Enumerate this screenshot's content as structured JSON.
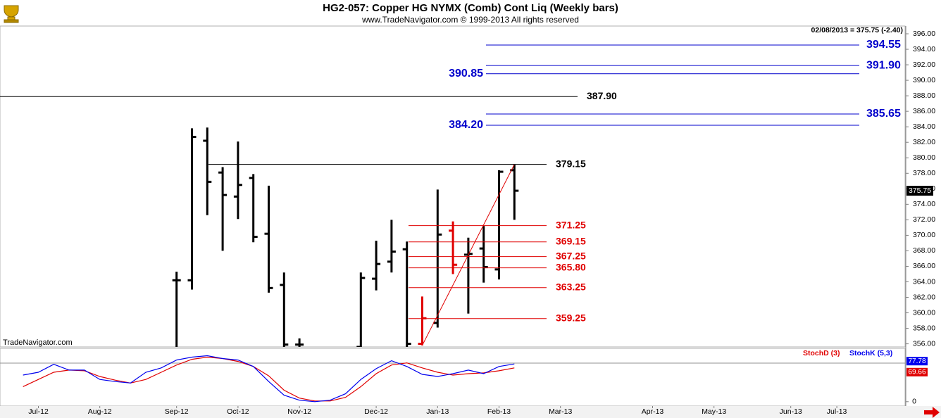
{
  "chart_data": [
    {
      "type": "ohlc",
      "title": "HG2-057:  Copper HG NYMX (Comb) Cont Liq  (Weekly bars)",
      "subtitle": "www.TradeNavigator.com © 1999-2013 All rights reserved",
      "info": "02/08/2013 = 375.75 (-2.40)",
      "watermark": "TradeNavigator.com",
      "categories": [
        null,
        null,
        "Jul-12",
        null,
        null,
        null,
        "Aug-12",
        null,
        null,
        null,
        null,
        "Sep-12",
        null,
        null,
        null,
        "Oct-12",
        null,
        null,
        null,
        "Nov-12",
        null,
        null,
        null,
        null,
        "Dec-12",
        null,
        null,
        null,
        "Jan-13",
        null,
        null,
        null,
        "Feb-13",
        null,
        null,
        null,
        "Mar-13",
        null,
        null,
        null,
        null,
        null,
        "Apr-13",
        null,
        null,
        null,
        "May-13",
        null,
        null,
        null,
        null,
        "Jun-13",
        null,
        null,
        "Jul-13",
        null,
        null,
        null,
        null
      ],
      "open": [
        null,
        null,
        null,
        null,
        null,
        null,
        null,
        null,
        null,
        null,
        null,
        364.2,
        364.2,
        382.2,
        378.1,
        375.0,
        377.4,
        370.2,
        363.6,
        355.9,
        null,
        null,
        null,
        355.6,
        364.4,
        366.6,
        368.2,
        356.0,
        358.7,
        370.6,
        367.5,
        368.3,
        365.6,
        378.4,
        null,
        null,
        null,
        null,
        null,
        null,
        null,
        null,
        null,
        null,
        null,
        null,
        null,
        null,
        null,
        null,
        null,
        null,
        null,
        null,
        null,
        null,
        null,
        null,
        null
      ],
      "high": [
        null,
        null,
        null,
        null,
        null,
        null,
        null,
        null,
        null,
        null,
        null,
        365.3,
        383.8,
        383.9,
        378.8,
        382.1,
        377.9,
        376.4,
        365.2,
        356.7,
        null,
        null,
        null,
        365.2,
        369.3,
        372.0,
        369.2,
        362.1,
        375.9,
        371.8,
        369.7,
        371.2,
        378.4,
        379.15,
        null,
        null,
        null,
        null,
        null,
        null,
        null,
        null,
        null,
        null,
        null,
        null,
        null,
        null,
        null,
        null,
        null,
        null,
        null,
        null,
        null,
        null,
        null,
        null,
        null
      ],
      "low": [
        null,
        null,
        null,
        null,
        null,
        null,
        null,
        null,
        null,
        null,
        null,
        355.6,
        363.0,
        372.6,
        368.0,
        372.1,
        369.1,
        362.6,
        355.6,
        355.6,
        null,
        null,
        null,
        355.6,
        362.9,
        365.2,
        355.6,
        355.8,
        358.1,
        365.0,
        359.9,
        363.9,
        364.3,
        372.0,
        null,
        null,
        null,
        null,
        null,
        null,
        null,
        null,
        null,
        null,
        null,
        null,
        null,
        null,
        null,
        null,
        null,
        null,
        null,
        null,
        null,
        null,
        null,
        null,
        null
      ],
      "close": [
        null,
        null,
        null,
        null,
        null,
        null,
        null,
        null,
        null,
        null,
        null,
        364.2,
        382.7,
        376.9,
        375.2,
        376.5,
        369.8,
        363.2,
        355.9,
        355.9,
        null,
        null,
        null,
        364.5,
        366.3,
        367.9,
        356.0,
        359.3,
        370.1,
        366.2,
        367.6,
        365.9,
        378.2,
        375.75,
        null,
        null,
        null,
        null,
        null,
        null,
        null,
        null,
        null,
        null,
        null,
        null,
        null,
        null,
        null,
        null,
        null,
        null,
        null,
        null,
        null,
        null,
        null,
        null,
        null
      ],
      "bar_colors": [
        null,
        null,
        null,
        null,
        null,
        null,
        null,
        null,
        null,
        null,
        null,
        "#000000",
        "#000000",
        "#000000",
        "#000000",
        "#000000",
        "#000000",
        "#000000",
        "#000000",
        "#000000",
        null,
        null,
        null,
        "#000000",
        "#000000",
        "#000000",
        "#000000",
        "#e00000",
        "#000000",
        "#e00000",
        "#000000",
        "#000000",
        "#000000",
        "#000000",
        null,
        null,
        null,
        null,
        null,
        null,
        null,
        null,
        null,
        null,
        null,
        null,
        null,
        null,
        null,
        null,
        null,
        null,
        null,
        null,
        null,
        null,
        null,
        null,
        null
      ],
      "ylim": [
        355.6,
        397
      ],
      "yticks": [
        {
          "value": 356,
          "label": "356.00"
        },
        {
          "value": 358,
          "label": "358.00"
        },
        {
          "value": 360,
          "label": "360.00"
        },
        {
          "value": 362,
          "label": "362.00"
        },
        {
          "value": 364,
          "label": "364.00"
        },
        {
          "value": 366,
          "label": "366.00"
        },
        {
          "value": 368,
          "label": "368.00"
        },
        {
          "value": 370,
          "label": "370.00"
        },
        {
          "value": 372,
          "label": "372.00"
        },
        {
          "value": 374,
          "label": "374.00"
        },
        {
          "value": 376,
          "label": "376.00"
        },
        {
          "value": 378,
          "label": "378.00"
        },
        {
          "value": 380,
          "label": "380.00"
        },
        {
          "value": 382,
          "label": "382.00"
        },
        {
          "value": 384,
          "label": "384.00"
        },
        {
          "value": 386,
          "label": "386.00"
        },
        {
          "value": 388,
          "label": "388.00"
        },
        {
          "value": 390,
          "label": "390.00"
        },
        {
          "value": 392,
          "label": "392.00"
        },
        {
          "value": 394,
          "label": "394.00"
        },
        {
          "value": 396,
          "label": "396.00"
        }
      ],
      "levels": [
        {
          "value": 394.55,
          "label": "394.55",
          "color": "#0000cc"
        },
        {
          "value": 391.9,
          "label": "391.90",
          "color": "#0000cc"
        },
        {
          "value": 390.85,
          "label": "390.85",
          "color": "#0000cc"
        },
        {
          "value": 387.9,
          "label": "387.90",
          "color": "#000000"
        },
        {
          "value": 385.65,
          "label": "385.65",
          "color": "#0000cc"
        },
        {
          "value": 384.2,
          "label": "384.20",
          "color": "#0000cc"
        },
        {
          "value": 379.15,
          "label": "379.15",
          "color": "#000000"
        },
        {
          "value": 371.25,
          "label": "371.25",
          "color": "#e00000"
        },
        {
          "value": 369.15,
          "label": "369.15",
          "color": "#e00000"
        },
        {
          "value": 367.25,
          "label": "367.25",
          "color": "#e00000"
        },
        {
          "value": 365.8,
          "label": "365.80",
          "color": "#e00000"
        },
        {
          "value": 363.25,
          "label": "363.25",
          "color": "#e00000"
        },
        {
          "value": 359.25,
          "label": "359.25",
          "color": "#e00000"
        }
      ],
      "trend_color": "#e00000"
    },
    {
      "type": "line",
      "series": [
        {
          "name": "StochD (3)",
          "color": "#e00000",
          "values": [
            null,
            31.1,
            45.9,
            60.7,
            65.2,
            63.7,
            51.9,
            44.4,
            38.5,
            45.9,
            60.7,
            75.6,
            87.4,
            91.9,
            88.9,
            83.0,
            72.6,
            53.3,
            23.7,
            7.4,
            1.5,
            1.5,
            8.9,
            31.1,
            57.8,
            75.6,
            80.0,
            69.6,
            60.7,
            54.8,
            57.8,
            59.3,
            63.7,
            69.66,
            null,
            null,
            null,
            null,
            null,
            null,
            null,
            null,
            null,
            null,
            null,
            null,
            null,
            null,
            null,
            null,
            null,
            null,
            null,
            null,
            null,
            null,
            null,
            null,
            null
          ]
        },
        {
          "name": "StochK (5,3)",
          "color": "#0000ee",
          "values": [
            null,
            54.8,
            60.7,
            77.0,
            65.2,
            65.2,
            45.9,
            41.5,
            38.5,
            60.7,
            69.6,
            85.9,
            91.9,
            94.8,
            88.9,
            85.9,
            72.6,
            41.5,
            13.3,
            3.0,
            0,
            3.0,
            16.3,
            45.9,
            68.1,
            84.4,
            72.6,
            56.3,
            51.9,
            57.8,
            65.2,
            57.8,
            72.6,
            77.78,
            null,
            null,
            null,
            null,
            null,
            null,
            null,
            null,
            null,
            null,
            null,
            null,
            null,
            null,
            null,
            null,
            null,
            null,
            null,
            null,
            null,
            null,
            null,
            null,
            null
          ]
        }
      ],
      "ylim": [
        -9,
        110
      ],
      "yticks": [
        0
      ]
    }
  ]
}
